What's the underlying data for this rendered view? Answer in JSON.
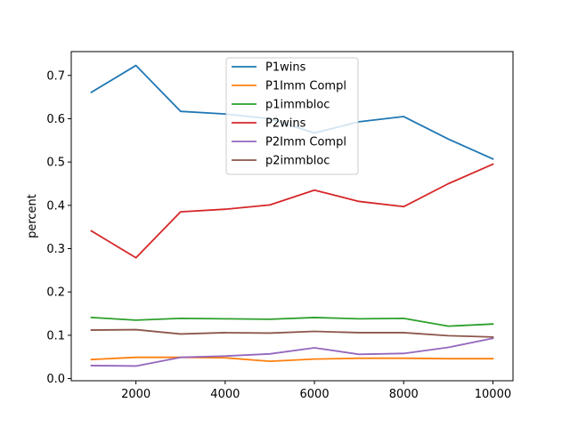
{
  "chart_data": {
    "type": "line",
    "title": "",
    "xlabel": "",
    "ylabel": "percent",
    "xlim": [
      550,
      10450
    ],
    "ylim": [
      -0.005,
      0.755
    ],
    "xticks": [
      2000,
      4000,
      6000,
      8000,
      10000
    ],
    "yticks": [
      0.0,
      0.1,
      0.2,
      0.3,
      0.4,
      0.5,
      0.6,
      0.7
    ],
    "xtick_labels": [
      "2000",
      "4000",
      "6000",
      "8000",
      "10000"
    ],
    "ytick_labels": [
      "0.0",
      "0.1",
      "0.2",
      "0.3",
      "0.4",
      "0.5",
      "0.6",
      "0.7"
    ],
    "legend_position": "top-center",
    "grid": false,
    "x": [
      1000,
      2000,
      3000,
      4000,
      5000,
      6000,
      7000,
      8000,
      9000,
      10000
    ],
    "series": [
      {
        "name": "P1wins",
        "color": "#1f77b4",
        "values": [
          0.661,
          0.723,
          0.617,
          0.611,
          0.6,
          0.567,
          0.593,
          0.605,
          0.553,
          0.507
        ]
      },
      {
        "name": "P1Imm Compl",
        "color": "#ff7f0e",
        "values": [
          0.044,
          0.049,
          0.049,
          0.048,
          0.04,
          0.045,
          0.047,
          0.047,
          0.046,
          0.046
        ]
      },
      {
        "name": "p1immbloc",
        "color": "#2ca02c",
        "values": [
          0.141,
          0.135,
          0.139,
          0.138,
          0.137,
          0.141,
          0.138,
          0.139,
          0.121,
          0.126
        ]
      },
      {
        "name": "P2wins",
        "color": "#d62728",
        "values": [
          0.341,
          0.279,
          0.385,
          0.391,
          0.401,
          0.435,
          0.409,
          0.397,
          0.45,
          0.495
        ]
      },
      {
        "name": "P2Imm Compl",
        "color": "#9467bd",
        "values": [
          0.03,
          0.029,
          0.049,
          0.052,
          0.057,
          0.071,
          0.056,
          0.058,
          0.072,
          0.093
        ]
      },
      {
        "name": "p2immbloc",
        "color": "#8c564b",
        "values": [
          0.112,
          0.113,
          0.103,
          0.106,
          0.105,
          0.109,
          0.106,
          0.106,
          0.099,
          0.096
        ]
      }
    ]
  }
}
